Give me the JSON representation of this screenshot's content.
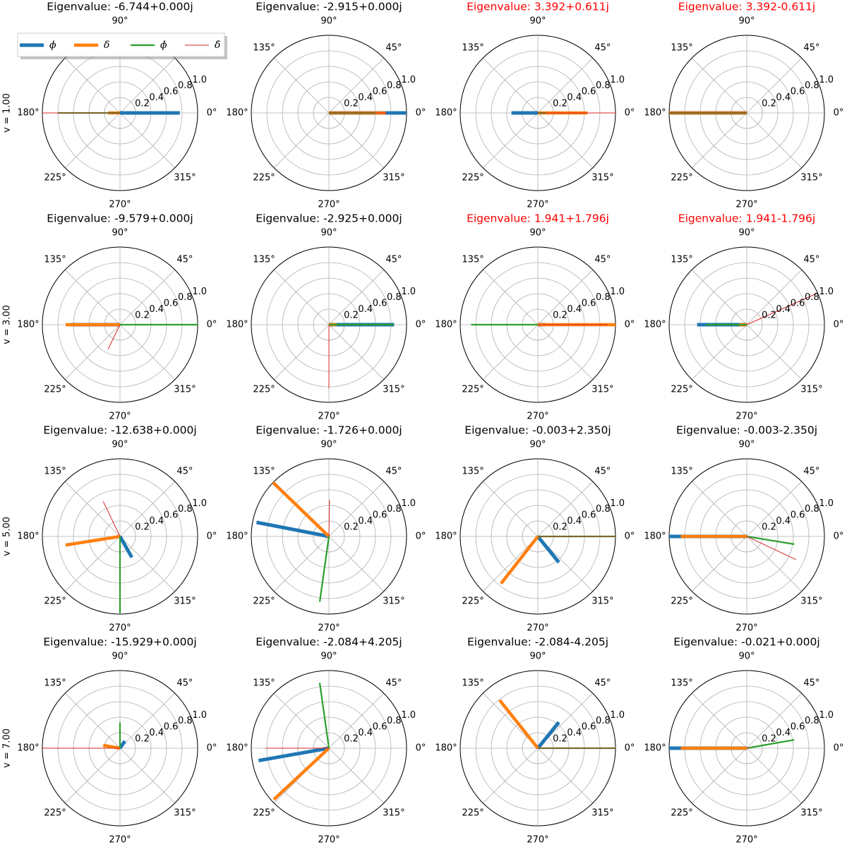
{
  "legend": [
    {
      "name": "ϕ",
      "color": "#1f77b4"
    },
    {
      "name": "δ",
      "color": "#ff7f0e"
    },
    {
      "name": "ϕ̇",
      "color": "#2ca02c"
    },
    {
      "name": "δ̇",
      "color": "#d62728"
    }
  ],
  "row_labels": [
    "v = 1.00",
    "v = 3.00",
    "v = 5.00",
    "v = 7.00"
  ],
  "polar_axes": {
    "rlim": [
      0,
      1
    ],
    "rticks": [
      0.2,
      0.4,
      0.6,
      0.8,
      {
        "value": 1,
        "label": "1.0"
      }
    ],
    "thetaticks": [
      {
        "value": 0,
        "label": "0°"
      },
      {
        "value": 45,
        "label": "45°"
      },
      {
        "value": 90,
        "label": "90°"
      },
      {
        "value": 135,
        "label": "135°"
      },
      {
        "value": 180,
        "label": "180°"
      },
      {
        "value": 225,
        "label": "225°"
      },
      {
        "value": 270,
        "label": "270°"
      },
      {
        "value": 315,
        "label": "315°"
      }
    ]
  },
  "chart_data": [
    {
      "type": "polar",
      "title": "Eigenvalue: -6.744+0.000j",
      "title_color": "#000000",
      "r": [
        0.77,
        0.15,
        0.8,
        1.0
      ],
      "theta": [
        0,
        180,
        180,
        180
      ]
    },
    {
      "type": "polar",
      "title": "Eigenvalue: -2.915+0.000j",
      "title_color": "#000000",
      "r": [
        1.0,
        0.73,
        0.6,
        0.75
      ],
      "theta": [
        0,
        0,
        0,
        0
      ]
    },
    {
      "type": "polar",
      "title": "Eigenvalue: 3.392+0.611j",
      "title_color": "#ff0000",
      "r": [
        0.34,
        0.64,
        0.1,
        1.0
      ],
      "theta": [
        180,
        0,
        0,
        0
      ]
    },
    {
      "type": "polar",
      "title": "Eigenvalue: 3.392-0.611j",
      "title_color": "#ff0000",
      "r": [
        1.0,
        1.0,
        1.0,
        1.0
      ],
      "theta": [
        180,
        180,
        180,
        180
      ]
    },
    {
      "type": "polar",
      "title": "Eigenvalue: -9.579+0.000j",
      "title_color": "#000000",
      "r": [
        0.64,
        0.7,
        1.0,
        0.35
      ],
      "theta": [
        180,
        180,
        0,
        244
      ]
    },
    {
      "type": "polar",
      "title": "Eigenvalue: -2.925+0.000j",
      "title_color": "#000000",
      "r": [
        0.84,
        0.1,
        0.84,
        0.82
      ],
      "theta": [
        0,
        0,
        0,
        270
      ]
    },
    {
      "type": "polar",
      "title": "Eigenvalue: 1.941+1.796j",
      "title_color": "#ff0000",
      "r": [
        0.1,
        1.0,
        0.86,
        0.9
      ],
      "theta": [
        0,
        0,
        180,
        0
      ]
    },
    {
      "type": "polar",
      "title": "Eigenvalue: 1.941-1.796j",
      "title_color": "#ff0000",
      "r": [
        0.64,
        0.1,
        0.53,
        1.0
      ],
      "theta": [
        180,
        180,
        180,
        24
      ]
    },
    {
      "type": "polar",
      "title": "Eigenvalue: -12.638+0.000j",
      "title_color": "#000000",
      "r": [
        0.31,
        0.71,
        1.0,
        0.5
      ],
      "theta": [
        299.5,
        189,
        270,
        115.6
      ]
    },
    {
      "type": "polar",
      "title": "Eigenvalue: -1.726+0.000j",
      "title_color": "#000000",
      "r": [
        0.95,
        1.0,
        0.85,
        0.47
      ],
      "theta": [
        169,
        136,
        262,
        89
      ]
    },
    {
      "type": "polar",
      "title": "Eigenvalue: -0.003+2.350j",
      "title_color": "#000000",
      "r": [
        0.43,
        0.77,
        1.0,
        1.0
      ],
      "theta": [
        309,
        232,
        0,
        0
      ]
    },
    {
      "type": "polar",
      "title": "Eigenvalue: -0.003-2.350j",
      "title_color": "#000000",
      "r": [
        1.0,
        0.85,
        0.62,
        0.7
      ],
      "theta": [
        180,
        180,
        350.7,
        334.8
      ]
    },
    {
      "type": "polar",
      "title": "Eigenvalue: -15.929+0.000j",
      "title_color": "#000000",
      "r": [
        0.11,
        0.22,
        0.33,
        1.0
      ],
      "theta": [
        55,
        170.5,
        90,
        180
      ]
    },
    {
      "type": "polar",
      "title": "Eigenvalue: -2.084+4.205j",
      "title_color": "#000000",
      "r": [
        0.92,
        0.97,
        0.85,
        0.82
      ],
      "theta": [
        190,
        223,
        98,
        180
      ]
    },
    {
      "type": "polar",
      "title": "Eigenvalue: -2.084-4.205j",
      "title_color": "#000000",
      "r": [
        0.43,
        0.79,
        1.0,
        1.0
      ],
      "theta": [
        51,
        128.5,
        0,
        0
      ]
    },
    {
      "type": "polar",
      "title": "Eigenvalue: -0.021+0.000j",
      "title_color": "#000000",
      "r": [
        1.0,
        0.85,
        0.62,
        0.05
      ],
      "theta": [
        180,
        180,
        10,
        10
      ]
    }
  ]
}
